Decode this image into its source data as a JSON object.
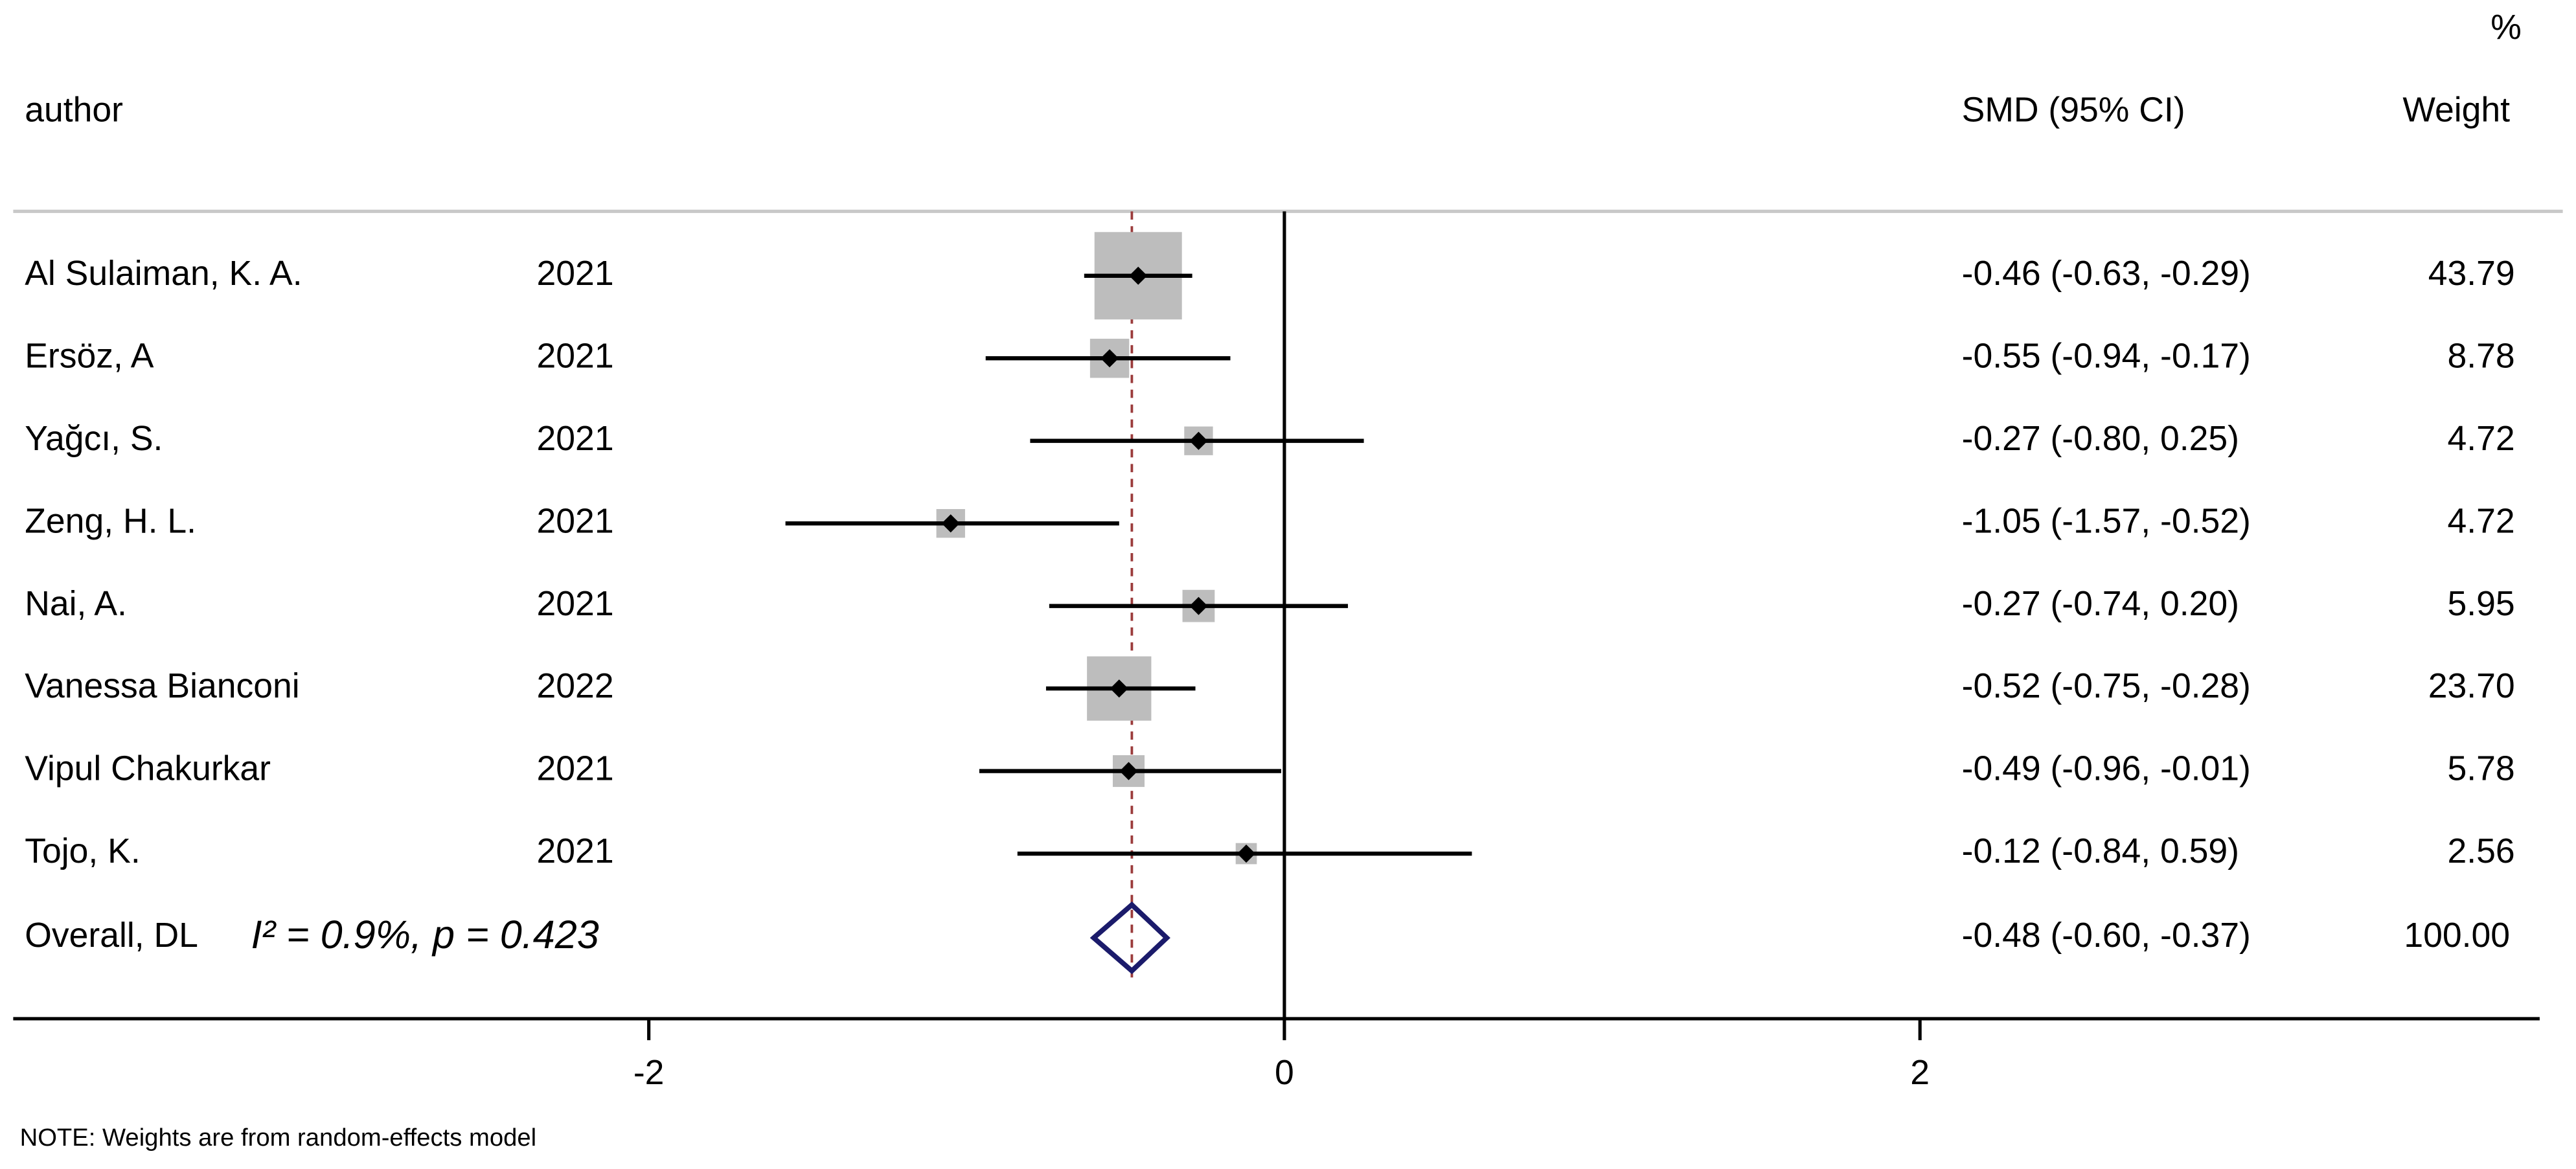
{
  "chart_data": {
    "type": "forest",
    "headers": {
      "author": "author",
      "estimate": "SMD (95% CI)",
      "weight_unit": "%",
      "weight": "Weight"
    },
    "categories": [
      "Al Sulaiman, K. A.",
      "Ersöz, A",
      "Yağcı, S.",
      "Zeng, H. L.",
      "Nai, A.",
      "Vanessa Bianconi",
      "Vipul Chakurkar",
      "Tojo, K."
    ],
    "years": [
      2021,
      2021,
      2021,
      2021,
      2021,
      2022,
      2021,
      2021
    ],
    "estimates": [
      -0.46,
      -0.55,
      -0.27,
      -1.05,
      -0.27,
      -0.52,
      -0.49,
      -0.12
    ],
    "lower": [
      -0.63,
      -0.94,
      -0.8,
      -1.57,
      -0.74,
      -0.75,
      -0.96,
      -0.84
    ],
    "upper": [
      -0.29,
      -0.17,
      0.25,
      -0.52,
      0.2,
      -0.28,
      -0.01,
      0.59
    ],
    "ci_labels": [
      "-0.46 (-0.63, -0.29)",
      "-0.55 (-0.94, -0.17)",
      "-0.27 (-0.80, 0.25)",
      "-1.05 (-1.57, -0.52)",
      "-0.27 (-0.74, 0.20)",
      "-0.52 (-0.75, -0.28)",
      "-0.49 (-0.96, -0.01)",
      "-0.12 (-0.84, 0.59)"
    ],
    "weights": [
      43.79,
      8.78,
      4.72,
      4.72,
      5.95,
      23.7,
      5.78,
      2.56
    ],
    "weight_labels": [
      "43.79",
      "8.78",
      "4.72",
      "4.72",
      "5.95",
      "23.70",
      "5.78",
      "2.56"
    ],
    "overall": {
      "label": "Overall, DL",
      "heterogeneity": "I² = 0.9%, p = 0.423",
      "estimate": -0.48,
      "lower": -0.6,
      "upper": -0.37,
      "ci_label": "-0.48 (-0.60, -0.37)",
      "weight": 100,
      "weight_label": "100.00"
    },
    "xlim": [
      -4,
      3.95
    ],
    "xticks": [
      -2,
      0,
      2
    ],
    "note": "NOTE: Weights are from random-effects model",
    "box_color": "#bdbdbd",
    "marker_color": "#000000",
    "overall_line_color": "#9b3b3b",
    "diamond_color": "#1b1b6b"
  }
}
